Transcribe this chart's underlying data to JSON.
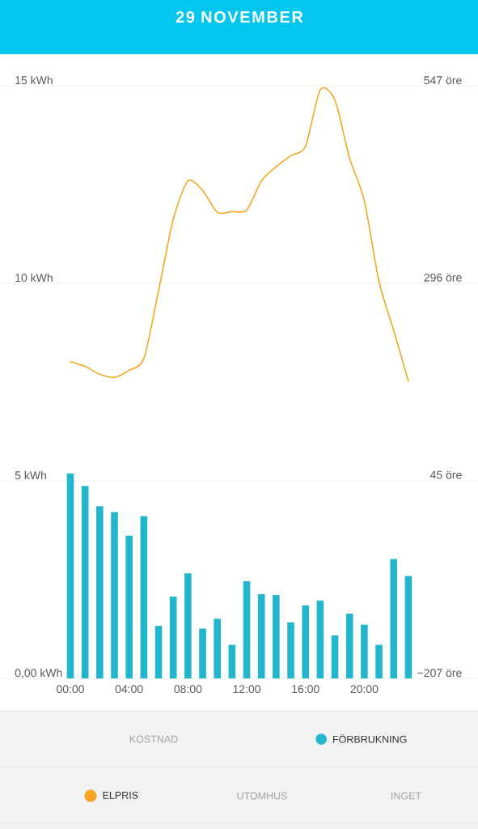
{
  "chart_data": {
    "type": "bar",
    "title": "29 NOVEMBER",
    "categories": [
      "00:00",
      null,
      null,
      null,
      "04:00",
      null,
      null,
      null,
      "08:00",
      null,
      null,
      null,
      "12:00",
      null,
      null,
      null,
      "16:00",
      null,
      null,
      null,
      "20:00",
      null,
      null,
      null
    ],
    "series": [
      {
        "name": "FÖRBRUKNING",
        "color": "#21b6cc",
        "values": [
          5.19,
          4.87,
          4.36,
          4.21,
          3.61,
          4.11,
          1.33,
          2.07,
          2.66,
          1.26,
          1.51,
          0.85,
          2.46,
          2.13,
          2.11,
          1.42,
          1.85,
          1.97,
          1.09,
          1.64,
          1.36,
          0.85,
          3.02,
          2.59
        ]
      },
      {
        "name": "ELPRIS",
        "type": "line",
        "axis": "y2",
        "color": "#f5a623",
        "values": [
          196,
          190,
          180,
          176,
          185,
          200,
          286,
          377,
          426,
          414,
          386,
          387,
          389,
          426,
          444,
          458,
          470,
          542,
          529,
          455,
          401,
          298,
          236,
          171
        ]
      }
    ],
    "ylim": [
      0,
      15
    ],
    "yticks": [
      {
        "value": 0,
        "label": "0,00 kWh"
      },
      {
        "value": 5,
        "label": "5 kWh"
      },
      {
        "value": 10,
        "label": "10 kWh"
      },
      {
        "value": 15,
        "label": "15 kWh"
      }
    ],
    "y2lim": [
      -207,
      547
    ],
    "y2ticks": [
      {
        "value": -207,
        "label": "−207 öre"
      },
      {
        "value": 45,
        "label": "45 öre"
      },
      {
        "value": 296,
        "label": "296 öre"
      },
      {
        "value": 547,
        "label": "547 öre"
      }
    ],
    "grid": "y",
    "legend": "bottom",
    "annotations": [
      "KOSTNAD",
      "UTOMHUS",
      "INGET"
    ]
  }
}
